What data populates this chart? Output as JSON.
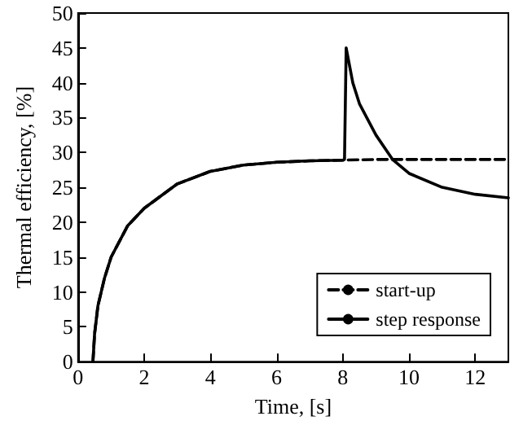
{
  "chart_data": {
    "type": "line",
    "xlabel": "Time, [s]",
    "ylabel": "Thermal efficiency, [%]",
    "xlim": [
      0,
      13
    ],
    "xticks": [
      0,
      2,
      4,
      6,
      8,
      10,
      12
    ],
    "ylim": [
      0,
      50
    ],
    "yticks": [
      0,
      5,
      10,
      15,
      20,
      25,
      30,
      35,
      40,
      45,
      50
    ],
    "grid": false,
    "legend": "bottom right",
    "marker": "none",
    "series": [
      {
        "name": "start-up",
        "color": "#000000",
        "line_style": "dashed",
        "x": [
          0.45,
          0.5,
          0.6,
          0.8,
          1,
          1.5,
          2,
          3,
          4,
          5,
          6,
          7,
          8,
          9,
          10,
          11,
          12,
          13
        ],
        "values": [
          0,
          4,
          8,
          12,
          15,
          19.5,
          22,
          25.5,
          27.3,
          28.2,
          28.6,
          28.8,
          28.9,
          29,
          29,
          29,
          29,
          29
        ]
      },
      {
        "name": "step response",
        "color": "#000000",
        "line_style": "solid",
        "x": [
          0.45,
          0.5,
          0.6,
          0.8,
          1,
          1.5,
          2,
          3,
          4,
          5,
          6,
          7,
          8,
          8.05,
          8.1,
          8.3,
          8.5,
          9,
          9.5,
          10,
          11,
          12,
          13
        ],
        "values": [
          0,
          4,
          8,
          12,
          15,
          19.5,
          22,
          25.5,
          27.3,
          28.2,
          28.6,
          28.8,
          28.9,
          29,
          45,
          40,
          37,
          32.5,
          29,
          27,
          25,
          24,
          23.5
        ]
      }
    ]
  }
}
